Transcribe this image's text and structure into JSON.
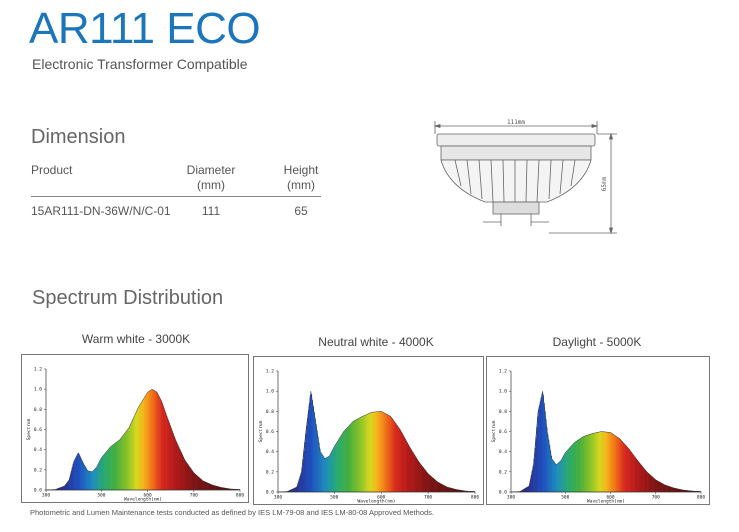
{
  "header": {
    "title": "AR111 ECO",
    "subtitle": "Electronic Transformer Compatible"
  },
  "dimension": {
    "heading": "Dimension",
    "columns": [
      {
        "line1": "Product",
        "line2": ""
      },
      {
        "line1": "Diameter",
        "line2": "(mm)"
      },
      {
        "line1": "Height",
        "line2": "(mm)"
      }
    ],
    "rows": [
      {
        "product": "15AR111-DN-36W/N/C-01",
        "diameter": "111",
        "height": "65"
      }
    ],
    "drawing": {
      "width_label": "111mm",
      "height_label": "65mm"
    }
  },
  "spectrum": {
    "heading": "Spectrum Distribution"
  },
  "chart_data": [
    {
      "type": "area",
      "title": "Warm white - 3000K",
      "xlabel": "Wavelength(nm)",
      "ylabel": "Spectrum",
      "xlim": [
        380,
        800
      ],
      "ylim": [
        0,
        1.2
      ],
      "xticks": [
        "380",
        "500",
        "600",
        "700",
        "800"
      ],
      "yticks": [
        "0.0",
        "0.2",
        "0.4",
        "0.6",
        "0.8",
        "1.0",
        "1.2"
      ],
      "x": [
        380,
        400,
        420,
        430,
        440,
        450,
        460,
        470,
        480,
        490,
        500,
        520,
        540,
        560,
        580,
        600,
        610,
        620,
        630,
        640,
        660,
        680,
        700,
        720,
        740,
        760,
        780,
        800
      ],
      "y": [
        0,
        0.005,
        0.04,
        0.1,
        0.28,
        0.37,
        0.27,
        0.19,
        0.18,
        0.23,
        0.32,
        0.43,
        0.5,
        0.62,
        0.82,
        0.97,
        1.0,
        0.97,
        0.88,
        0.75,
        0.5,
        0.3,
        0.17,
        0.09,
        0.05,
        0.025,
        0.01,
        0.005
      ]
    },
    {
      "type": "area",
      "title": "Neutral white - 4000K",
      "xlabel": "Wavelength(nm)",
      "ylabel": "Spectrum",
      "xlim": [
        380,
        800
      ],
      "ylim": [
        0,
        1.2
      ],
      "xticks": [
        "380",
        "500",
        "600",
        "700",
        "800"
      ],
      "yticks": [
        "0.0",
        "0.2",
        "0.4",
        "0.6",
        "0.8",
        "1.0",
        "1.2"
      ],
      "x": [
        380,
        400,
        420,
        430,
        440,
        450,
        460,
        470,
        480,
        490,
        500,
        520,
        540,
        560,
        580,
        600,
        620,
        640,
        660,
        680,
        700,
        720,
        740,
        760,
        780,
        800
      ],
      "y": [
        0,
        0.005,
        0.05,
        0.2,
        0.62,
        1.0,
        0.7,
        0.4,
        0.33,
        0.36,
        0.45,
        0.6,
        0.7,
        0.75,
        0.79,
        0.8,
        0.75,
        0.62,
        0.45,
        0.3,
        0.18,
        0.1,
        0.05,
        0.025,
        0.01,
        0.005
      ]
    },
    {
      "type": "area",
      "title": "Daylight - 5000K",
      "xlabel": "Wavelength(nm)",
      "ylabel": "Spectrum",
      "xlim": [
        380,
        800
      ],
      "ylim": [
        0,
        1.2
      ],
      "xticks": [
        "380",
        "500",
        "600",
        "700",
        "800"
      ],
      "yticks": [
        "0.0",
        "0.2",
        "0.4",
        "0.6",
        "0.8",
        "1.0",
        "1.2"
      ],
      "x": [
        380,
        400,
        420,
        430,
        440,
        450,
        460,
        470,
        480,
        490,
        500,
        520,
        540,
        560,
        580,
        600,
        620,
        640,
        660,
        680,
        700,
        720,
        740,
        760,
        780,
        800
      ],
      "y": [
        0,
        0.005,
        0.06,
        0.28,
        0.8,
        1.0,
        0.6,
        0.33,
        0.27,
        0.31,
        0.39,
        0.49,
        0.55,
        0.58,
        0.6,
        0.59,
        0.53,
        0.43,
        0.31,
        0.2,
        0.12,
        0.07,
        0.04,
        0.02,
        0.01,
        0.005
      ]
    }
  ],
  "footnote": "Photometric and Lumen Maintenance tests conducted as defined by IES LM-79-08 and IES LM-80-08 Approved Methods.",
  "colors": {
    "title": "#1c76bc",
    "text": "#555555",
    "border": "#777777"
  }
}
